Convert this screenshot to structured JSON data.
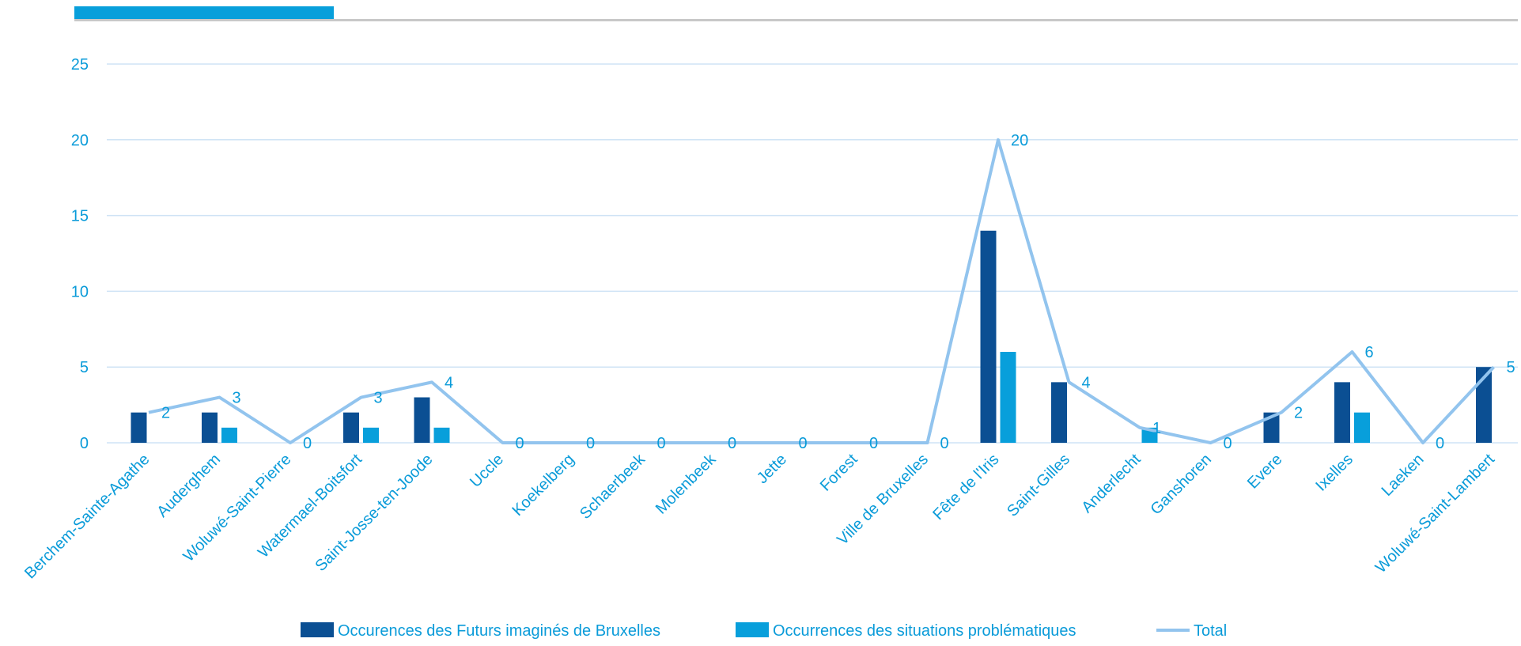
{
  "colors": {
    "series_futurs": "#0b4f93",
    "series_situations": "#089fdb",
    "series_total": "#92c4ee",
    "text": "#0a9bd9",
    "grid": "#cfe3f5",
    "header_accent": "#089fdb",
    "header_rule": "#c8c8c8"
  },
  "chart_data": {
    "type": "bar",
    "title": "",
    "xlabel": "",
    "ylabel": "",
    "ylim": [
      0,
      25
    ],
    "yticks": [
      0,
      5,
      10,
      15,
      20,
      25
    ],
    "grid": true,
    "legend_position": "bottom",
    "categories": [
      "Berchem-Sainte-Agathe",
      "Auderghem",
      "Woluwé-Saint-Pierre",
      "Watermael-Boitsfort",
      "Saint-Josse-ten-Joode",
      "Uccle",
      "Koekelberg",
      "Schaerbeek",
      "Molenbeek",
      "Jette",
      "Forest",
      "Ville de Bruxelles",
      "Fête de l'Iris",
      "Saint-Gilles",
      "Anderlecht",
      "Ganshoren",
      "Evere",
      "Ixelles",
      "Laeken",
      "Woluwé-Saint-Lambert"
    ],
    "series": [
      {
        "name": "Occurences des Futurs imaginés de Bruxelles",
        "type": "bar",
        "values": [
          2,
          2,
          0,
          2,
          3,
          0,
          0,
          0,
          0,
          0,
          0,
          0,
          14,
          4,
          0,
          0,
          2,
          4,
          0,
          5
        ]
      },
      {
        "name": "Occurrences des situations problématiques",
        "type": "bar",
        "values": [
          0,
          1,
          0,
          1,
          1,
          0,
          0,
          0,
          0,
          0,
          0,
          0,
          6,
          0,
          1,
          0,
          0,
          2,
          0,
          0
        ]
      },
      {
        "name": "Total",
        "type": "line",
        "values": [
          2,
          3,
          0,
          3,
          4,
          0,
          0,
          0,
          0,
          0,
          0,
          0,
          20,
          4,
          1,
          0,
          2,
          6,
          0,
          5
        ]
      }
    ]
  }
}
